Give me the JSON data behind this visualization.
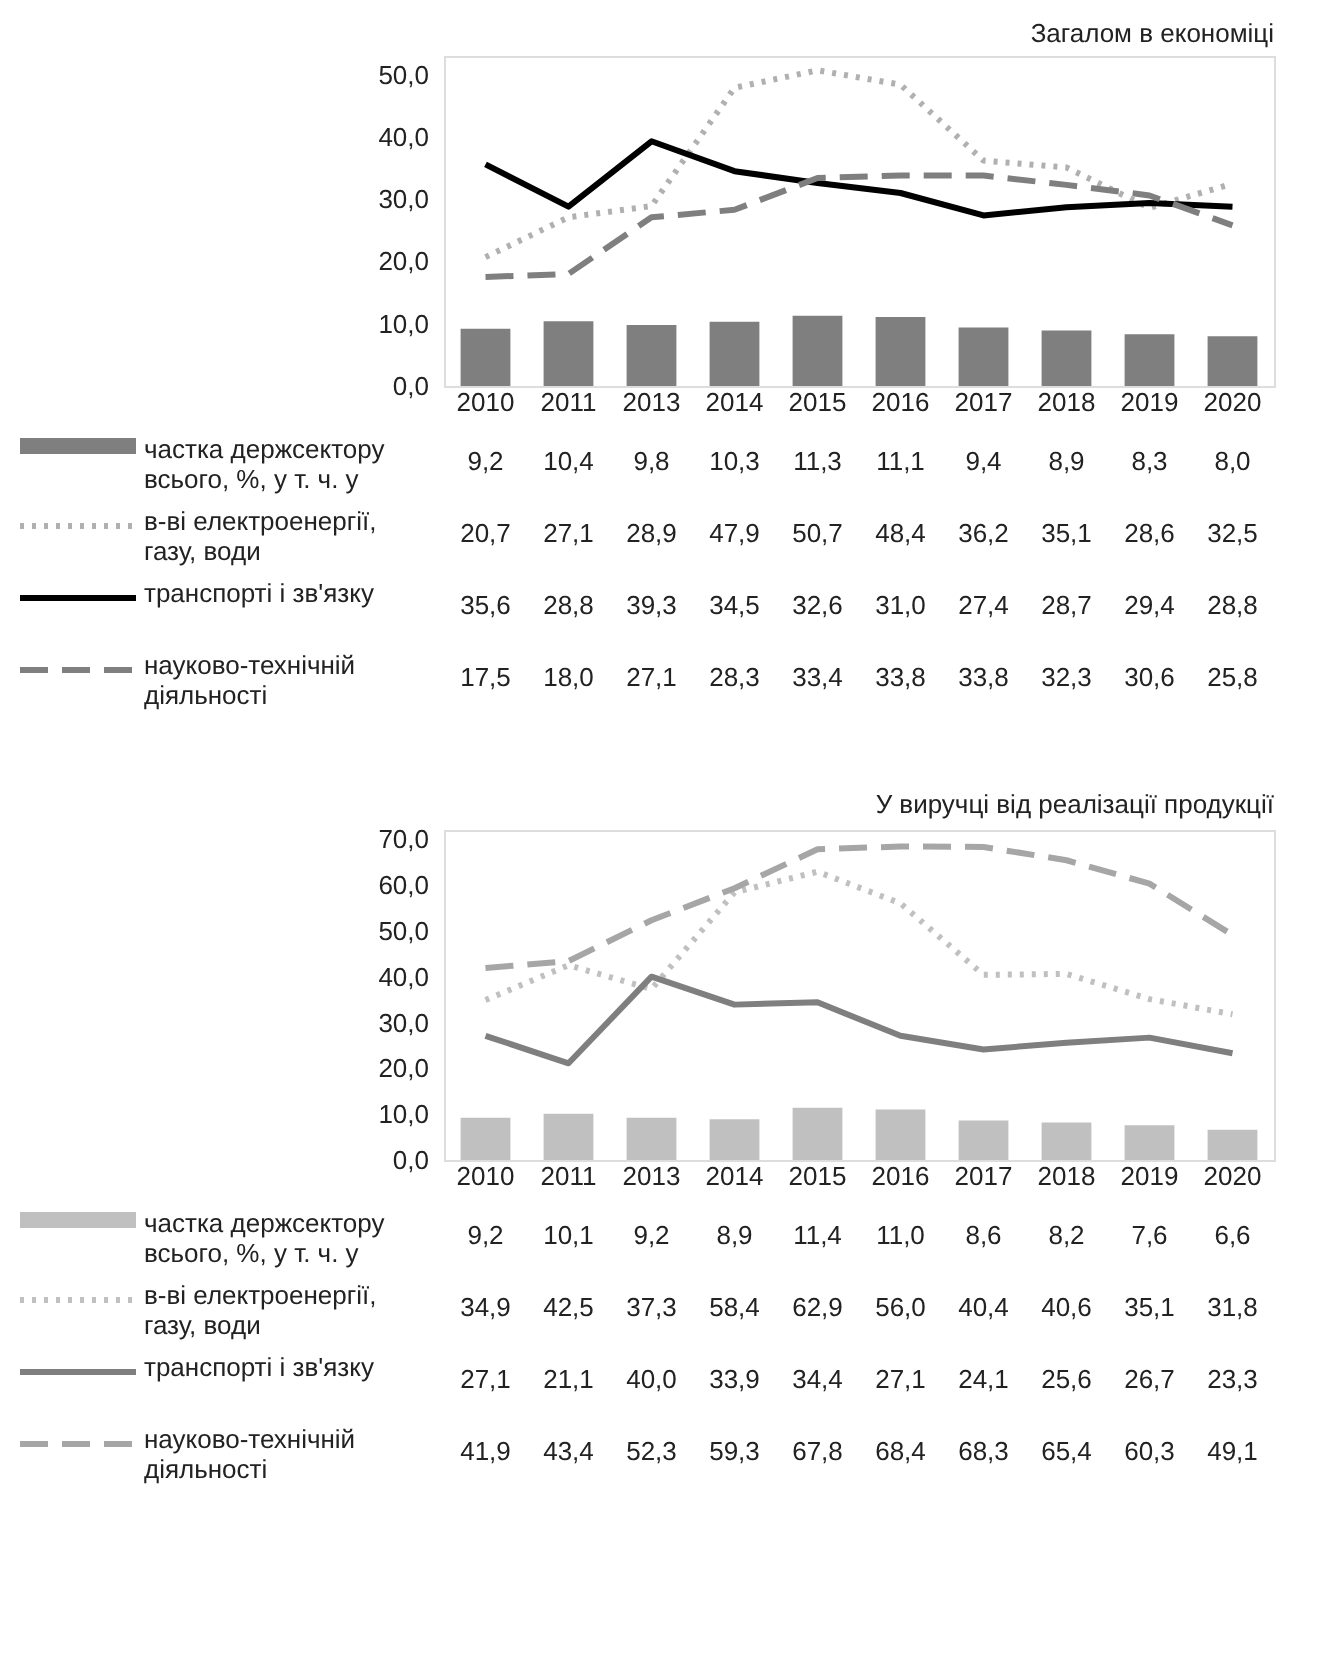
{
  "chart_data": [
    {
      "type": "bar",
      "title": "Загалом в економіці",
      "categories": [
        "2010",
        "2011",
        "2013",
        "2014",
        "2015",
        "2016",
        "2017",
        "2018",
        "2019",
        "2020"
      ],
      "ylim": [
        0,
        53
      ],
      "yticks": [
        {
          "value": 0,
          "label": "0,0"
        },
        {
          "value": 10,
          "label": "10,0"
        },
        {
          "value": 20,
          "label": "20,0"
        },
        {
          "value": 30,
          "label": "30,0"
        },
        {
          "value": 40,
          "label": "40,0"
        },
        {
          "value": 50,
          "label": "50,0"
        }
      ],
      "grid": false,
      "legend": "bottom",
      "series": [
        {
          "name": "частка держсектору\nвсього, %, у т. ч. у",
          "color": "#7f7f7f",
          "values": [
            9.2,
            10.4,
            9.8,
            10.3,
            11.3,
            11.1,
            9.4,
            8.9,
            8.3,
            8.0
          ],
          "value_labels": [
            "9,2",
            "10,4",
            "9,8",
            "10,3",
            "11,3",
            "11,1",
            "9,4",
            "8,9",
            "8,3",
            "8,0"
          ]
        },
        {
          "name": "в-ві електроенергії,\nгазу, води",
          "type": "line",
          "line_style": "dotted",
          "color": "#b0b0b0",
          "values": [
            20.7,
            27.1,
            28.9,
            47.9,
            50.7,
            48.4,
            36.2,
            35.1,
            28.6,
            32.5
          ],
          "value_labels": [
            "20,7",
            "27,1",
            "28,9",
            "47,9",
            "50,7",
            "48,4",
            "36,2",
            "35,1",
            "28,6",
            "32,5"
          ]
        },
        {
          "name": "транспорті і зв'язку",
          "type": "line",
          "line_style": "solid",
          "color": "#000000",
          "values": [
            35.6,
            28.8,
            39.3,
            34.5,
            32.6,
            31.0,
            27.4,
            28.7,
            29.4,
            28.8
          ],
          "value_labels": [
            "35,6",
            "28,8",
            "39,3",
            "34,5",
            "32,6",
            "31,0",
            "27,4",
            "28,7",
            "29,4",
            "28,8"
          ]
        },
        {
          "name": "науково-технічній\nдіяльності",
          "type": "line",
          "line_style": "dashed",
          "color": "#7f7f7f",
          "values": [
            17.5,
            18.0,
            27.1,
            28.3,
            33.4,
            33.8,
            33.8,
            32.3,
            30.6,
            25.8
          ],
          "value_labels": [
            "17,5",
            "18,0",
            "27,1",
            "28,3",
            "33,4",
            "33,8",
            "33,8",
            "32,3",
            "30,6",
            "25,8"
          ]
        }
      ]
    },
    {
      "type": "bar",
      "title": "У виручці від реалізації продукції",
      "categories": [
        "2010",
        "2011",
        "2013",
        "2014",
        "2015",
        "2016",
        "2017",
        "2018",
        "2019",
        "2020"
      ],
      "ylim": [
        0,
        72
      ],
      "yticks": [
        {
          "value": 0,
          "label": "0,0"
        },
        {
          "value": 10,
          "label": "10,0"
        },
        {
          "value": 20,
          "label": "20,0"
        },
        {
          "value": 30,
          "label": "30,0"
        },
        {
          "value": 40,
          "label": "40,0"
        },
        {
          "value": 50,
          "label": "50,0"
        },
        {
          "value": 60,
          "label": "60,0"
        },
        {
          "value": 70,
          "label": "70,0"
        }
      ],
      "grid": false,
      "legend": "bottom",
      "series": [
        {
          "name": "частка держсектору\nвсього, %, у т. ч. у",
          "color": "#c0c0c0",
          "values": [
            9.2,
            10.1,
            9.2,
            8.9,
            11.4,
            11.0,
            8.6,
            8.2,
            7.6,
            6.6
          ],
          "value_labels": [
            "9,2",
            "10,1",
            "9,2",
            "8,9",
            "11,4",
            "11,0",
            "8,6",
            "8,2",
            "7,6",
            "6,6"
          ]
        },
        {
          "name": "в-ві електроенергії,\nгазу, води",
          "type": "line",
          "line_style": "dotted",
          "color": "#c0c0c0",
          "values": [
            34.9,
            42.5,
            37.3,
            58.4,
            62.9,
            56.0,
            40.4,
            40.6,
            35.1,
            31.8
          ],
          "value_labels": [
            "34,9",
            "42,5",
            "37,3",
            "58,4",
            "62,9",
            "56,0",
            "40,4",
            "40,6",
            "35,1",
            "31,8"
          ]
        },
        {
          "name": "транспорті і зв'язку",
          "type": "line",
          "line_style": "solid",
          "color": "#7f7f7f",
          "values": [
            27.1,
            21.1,
            40.0,
            33.9,
            34.4,
            27.1,
            24.1,
            25.6,
            26.7,
            23.3
          ],
          "value_labels": [
            "27,1",
            "21,1",
            "40,0",
            "33,9",
            "34,4",
            "27,1",
            "24,1",
            "25,6",
            "26,7",
            "23,3"
          ]
        },
        {
          "name": "науково-технічній\nдіяльності",
          "type": "line",
          "line_style": "dashed",
          "color": "#a6a6a6",
          "values": [
            41.9,
            43.4,
            52.3,
            59.3,
            67.8,
            68.4,
            68.3,
            65.4,
            60.3,
            49.1
          ],
          "value_labels": [
            "41,9",
            "43,4",
            "52,3",
            "59,3",
            "67,8",
            "68,4",
            "68,3",
            "65,4",
            "60,3",
            "49,1"
          ]
        }
      ]
    }
  ]
}
